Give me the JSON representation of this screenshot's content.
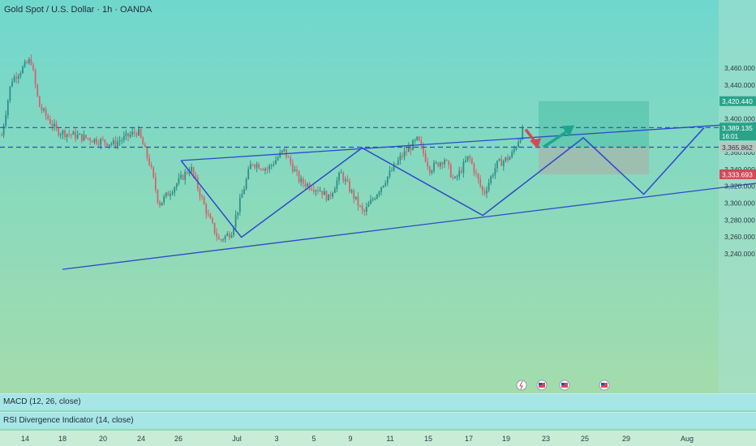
{
  "header": {
    "title": "Gold Spot / U.S. Dollar · 1h · OANDA"
  },
  "indicators": [
    {
      "label": "MACD (12, 26, close)"
    },
    {
      "label": "RSI Divergence Indicator (14, close)"
    }
  ],
  "colors": {
    "background_top": "#70d7ce",
    "background_bottom": "#a3dcac",
    "candle_up": "#2d8f86",
    "candle_down": "#d2646e",
    "trendline": "#2f49c9",
    "level_line": "#2f49c9",
    "arrow_down": "#d24a56",
    "arrow_up": "#1fa58a",
    "target_zone": "#4dbea6",
    "stop_zone": "#a7b3a8"
  },
  "chart_data": {
    "type": "candlestick",
    "title": "Gold Spot / U.S. Dollar · 1h · OANDA",
    "y_ticks": [
      3460,
      3440,
      3400,
      3380,
      3360,
      3340,
      3320,
      3300,
      3280,
      3260,
      3240
    ],
    "ylim": [
      3231,
      3477
    ],
    "x_ticks": [
      "14",
      "18",
      "20",
      "24",
      "26",
      "Jul",
      "3",
      "5",
      "9",
      "11",
      "15",
      "17",
      "19",
      "23",
      "25",
      "29",
      "Aug"
    ],
    "price_labels": [
      {
        "value": "3,420.440",
        "kind": "target"
      },
      {
        "value": "3,389.135",
        "kind": "current",
        "countdown": "16:01"
      },
      {
        "value": "3,365.862",
        "kind": "level"
      },
      {
        "value": "3,333.693",
        "kind": "stop"
      }
    ],
    "horizontal_levels": [
      3389.135,
      3365.862
    ],
    "zigzag": [
      {
        "date": "Jun 24",
        "price": 3350
      },
      {
        "date": "Jun 27",
        "price": 3259
      },
      {
        "date": "Jul 3",
        "price": 3365
      },
      {
        "date": "Jul 9",
        "price": 3285
      },
      {
        "date": "Jul 14",
        "price": 3377
      },
      {
        "date": "Jul 17",
        "price": 3310
      },
      {
        "date": "Jul 20",
        "price": 3389
      }
    ],
    "channel": {
      "upper": [
        {
          "date": "Jun 24",
          "price": 3350
        },
        {
          "date": "Jul 31",
          "price": 3408
        }
      ],
      "lower": [
        {
          "date": "Jun 18",
          "price": 3221
        },
        {
          "date": "Jul 31",
          "price": 3348
        }
      ]
    },
    "arrows": [
      {
        "direction": "down",
        "from": 3387,
        "to": 3366
      },
      {
        "direction": "up",
        "from": 3366,
        "to": 3389
      }
    ],
    "target_zone": {
      "top": 3420.44,
      "bottom": 3365.862
    },
    "stop_zone": {
      "top": 3365.862,
      "bottom": 3333.693
    },
    "event_icons": [
      "flash-event",
      "us-flag",
      "us-flag",
      "us-flag"
    ]
  }
}
